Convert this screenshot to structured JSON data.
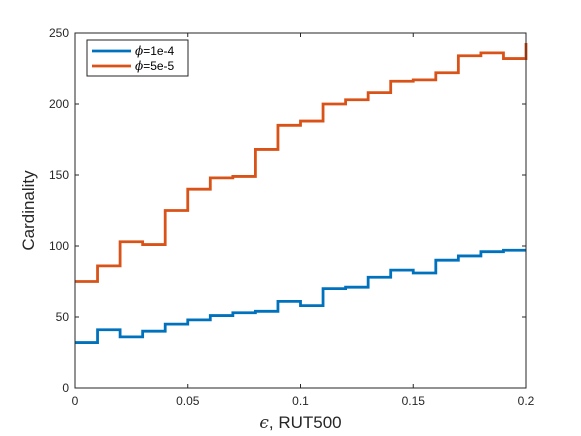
{
  "chart_data": {
    "type": "line",
    "step": true,
    "xlabel_symbol": "ϵ",
    "xlabel": ", RUT500",
    "ylabel": "Cardinality",
    "xlim": [
      0,
      0.2
    ],
    "ylim": [
      0,
      250
    ],
    "xticks": [
      0,
      0.05,
      0.1,
      0.15,
      0.2
    ],
    "xtick_labels": [
      "0",
      "0.05",
      "0.1",
      "0.15",
      "0.2"
    ],
    "yticks": [
      0,
      50,
      100,
      150,
      200,
      250
    ],
    "ytick_labels": [
      "0",
      "50",
      "100",
      "150",
      "200",
      "250"
    ],
    "grid": false,
    "legend_position": "top-left",
    "x": [
      0,
      0.01,
      0.02,
      0.03,
      0.04,
      0.05,
      0.06,
      0.07,
      0.08,
      0.09,
      0.1,
      0.11,
      0.12,
      0.13,
      0.14,
      0.15,
      0.16,
      0.17,
      0.18,
      0.19,
      0.2
    ],
    "series": [
      {
        "name_symbol": "ϕ",
        "name": "=1e-4",
        "color": "#0072BD",
        "values": [
          32,
          41,
          36,
          40,
          45,
          48,
          51,
          53,
          54,
          61,
          58,
          70,
          71,
          78,
          83,
          81,
          90,
          93,
          96,
          97,
          97
        ]
      },
      {
        "name_symbol": "ϕ",
        "name": "=5e-5",
        "color": "#D95319",
        "values": [
          75,
          86,
          103,
          101,
          125,
          140,
          148,
          149,
          168,
          185,
          188,
          200,
          203,
          208,
          216,
          217,
          222,
          234,
          236,
          232,
          243
        ]
      }
    ]
  }
}
